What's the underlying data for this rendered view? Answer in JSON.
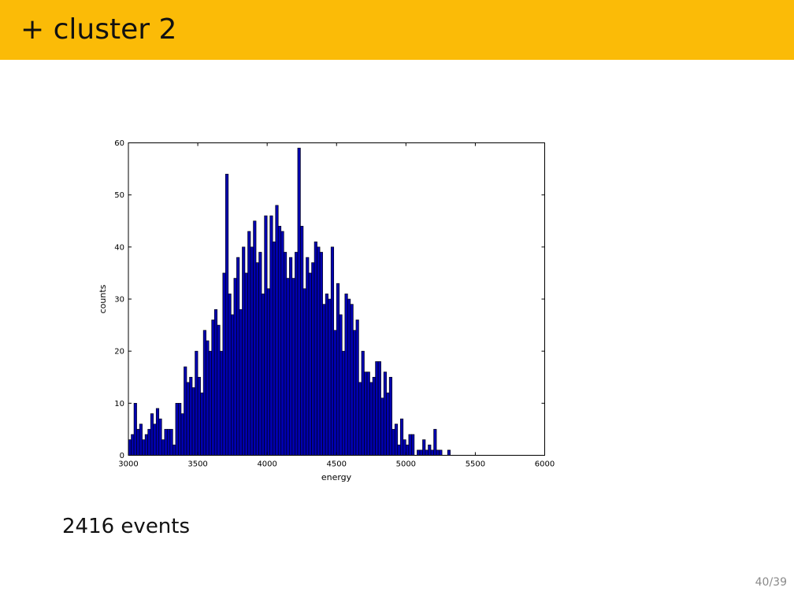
{
  "header": {
    "title": "+ cluster 2",
    "color": "#fbbb07"
  },
  "caption": "2416 events",
  "page_number": "40/39",
  "chart_data": {
    "type": "bar",
    "xlabel": "energy",
    "ylabel": "counts",
    "xlim": [
      3000,
      6000
    ],
    "ylim": [
      0,
      60
    ],
    "xticks": [
      "3000",
      "3500",
      "4000",
      "4500",
      "5000",
      "5500",
      "6000"
    ],
    "yticks": [
      "0",
      "10",
      "20",
      "30",
      "40",
      "50",
      "60"
    ],
    "bar_color": "#0000b0",
    "bin_width": 20,
    "bin_start": 3000,
    "values": [
      3,
      4,
      10,
      5,
      6,
      3,
      4,
      5,
      8,
      6,
      9,
      7,
      3,
      5,
      5,
      5,
      2,
      10,
      10,
      8,
      17,
      14,
      15,
      13,
      20,
      15,
      12,
      24,
      22,
      20,
      26,
      28,
      25,
      20,
      35,
      54,
      31,
      27,
      34,
      38,
      28,
      40,
      35,
      43,
      40,
      45,
      37,
      39,
      31,
      46,
      32,
      46,
      41,
      48,
      44,
      43,
      39,
      34,
      38,
      34,
      39,
      59,
      44,
      32,
      38,
      35,
      37,
      41,
      40,
      39,
      29,
      31,
      30,
      40,
      24,
      33,
      27,
      20,
      31,
      30,
      29,
      24,
      26,
      14,
      20,
      16,
      16,
      14,
      15,
      18,
      18,
      11,
      16,
      12,
      15,
      5,
      6,
      2,
      7,
      3,
      2,
      4,
      4,
      0,
      1,
      1,
      3,
      1,
      2,
      1,
      5,
      1,
      1,
      0,
      0,
      1,
      0,
      0,
      0,
      0,
      0,
      0,
      0,
      0,
      0,
      0,
      0,
      0,
      0,
      0,
      0,
      0,
      0,
      0,
      0,
      0,
      0,
      0,
      0,
      0,
      0,
      0,
      0,
      0,
      0,
      0,
      0,
      0,
      0,
      0
    ]
  }
}
